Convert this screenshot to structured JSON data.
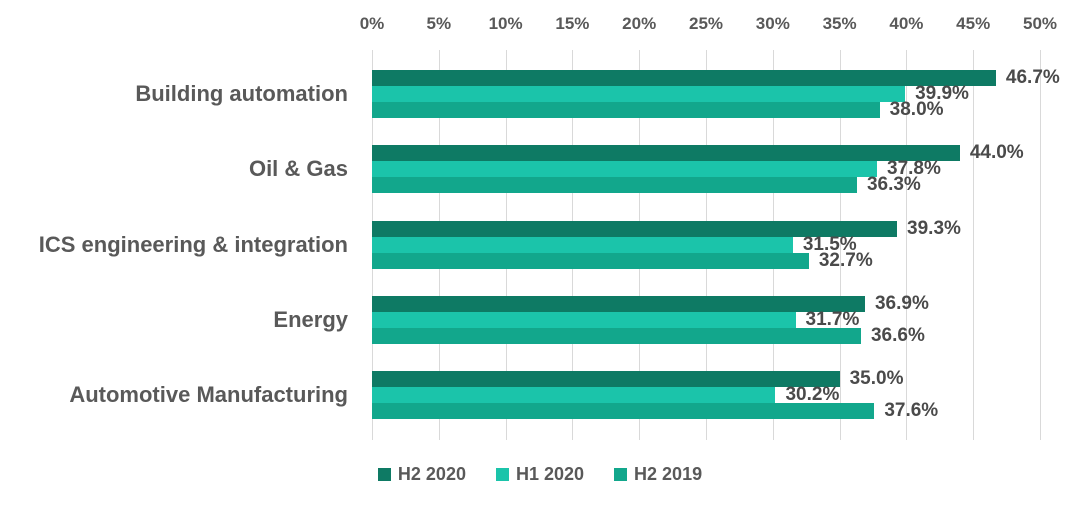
{
  "chart_data": {
    "type": "bar",
    "orientation": "horizontal",
    "title": "",
    "categories": [
      "Building automation",
      "Oil & Gas",
      "ICS engineering & integration",
      "Energy",
      "Automotive Manufacturing"
    ],
    "series": [
      {
        "name": "H2 2020",
        "color": "#0e7a64",
        "values": [
          46.7,
          44.0,
          39.3,
          36.9,
          35.0
        ],
        "labels": [
          "46.7%",
          "44.0%",
          "39.3%",
          "36.9%",
          "35.0%"
        ]
      },
      {
        "name": "H1 2020",
        "color": "#1bc4aa",
        "values": [
          39.9,
          37.8,
          31.5,
          31.7,
          30.2
        ],
        "labels": [
          "39.9%",
          "37.8%",
          "31.5%",
          "31.7%",
          "30.2%"
        ]
      },
      {
        "name": "H2 2019",
        "color": "#12a78c",
        "values": [
          38.0,
          36.3,
          32.7,
          36.6,
          37.6
        ],
        "labels": [
          "38.0%",
          "36.3%",
          "32.7%",
          "36.6%",
          "37.6%"
        ]
      }
    ],
    "x_ticks": [
      "0%",
      "5%",
      "10%",
      "15%",
      "20%",
      "25%",
      "30%",
      "35%",
      "40%",
      "45%",
      "50%"
    ],
    "xlim": [
      0,
      50
    ],
    "grid": true,
    "legend_position": "bottom",
    "styles": {
      "gridline_color": "#d9d9d9",
      "axis_text_color": "#595959",
      "value_label_color": "#4a4a4a",
      "background": "#ffffff"
    }
  }
}
